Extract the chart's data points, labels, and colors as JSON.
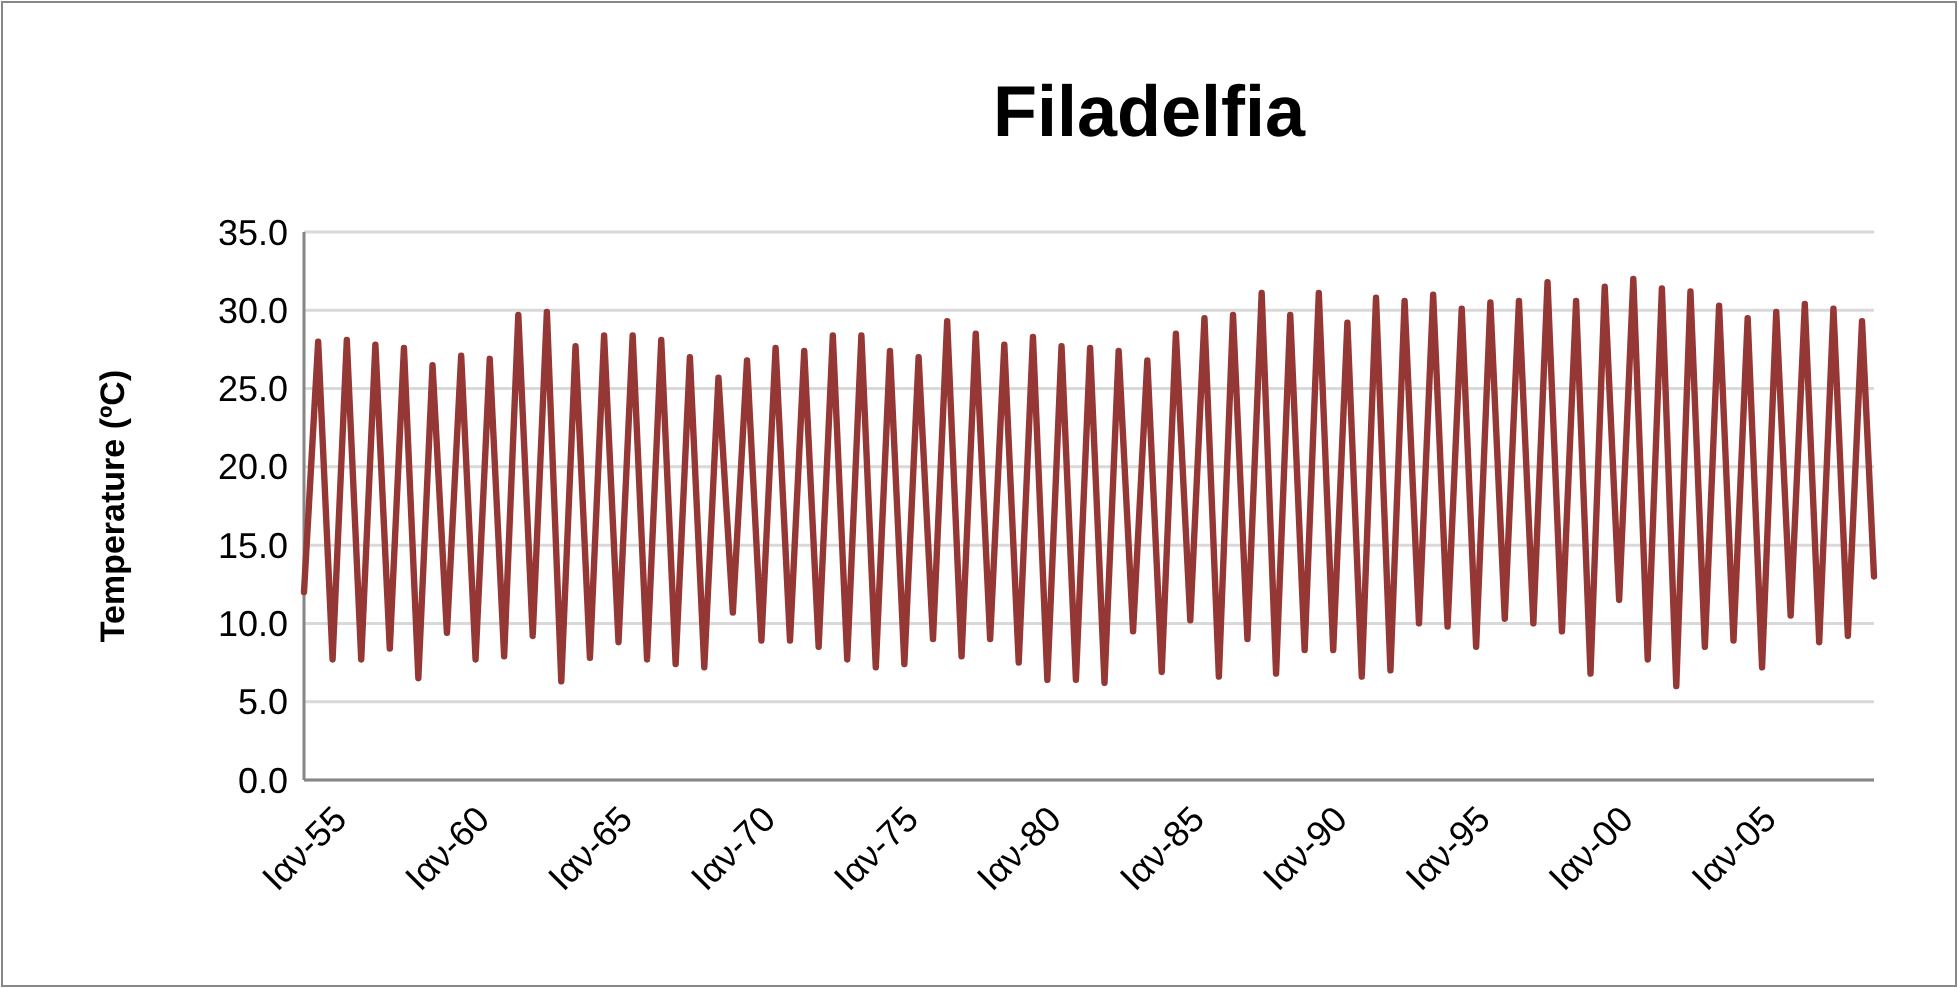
{
  "chart_data": {
    "type": "line",
    "title": "Filadelfia",
    "ylabel": "Temperature (ºC)",
    "x": [
      "1955-01",
      "1955-07",
      "1956-01",
      "1956-07",
      "1957-01",
      "1957-07",
      "1958-01",
      "1958-07",
      "1959-01",
      "1959-07",
      "1960-01",
      "1960-07",
      "1961-01",
      "1961-07",
      "1962-01",
      "1962-07",
      "1963-01",
      "1963-07",
      "1964-01",
      "1964-07",
      "1965-01",
      "1965-07",
      "1966-01",
      "1966-07",
      "1967-01",
      "1967-07",
      "1968-01",
      "1968-07",
      "1969-01",
      "1969-07",
      "1970-01",
      "1970-07",
      "1971-01",
      "1971-07",
      "1972-01",
      "1972-07",
      "1973-01",
      "1973-07",
      "1974-01",
      "1974-07",
      "1975-01",
      "1975-07",
      "1976-01",
      "1976-07",
      "1977-01",
      "1977-07",
      "1978-01",
      "1978-07",
      "1979-01",
      "1979-07",
      "1980-01",
      "1980-07",
      "1981-01",
      "1981-07",
      "1982-01",
      "1982-07",
      "1983-01",
      "1983-07",
      "1984-01",
      "1984-07",
      "1985-01",
      "1985-07",
      "1986-01",
      "1986-07",
      "1987-01",
      "1987-07",
      "1988-01",
      "1988-07",
      "1989-01",
      "1989-07",
      "1990-01",
      "1990-07",
      "1991-01",
      "1991-07",
      "1992-01",
      "1992-07",
      "1993-01",
      "1993-07",
      "1994-01",
      "1994-07",
      "1995-01",
      "1995-07",
      "1996-01",
      "1996-07",
      "1997-01",
      "1997-07",
      "1998-01",
      "1998-07",
      "1999-01",
      "1999-07",
      "2000-01",
      "2000-07",
      "2001-01",
      "2001-07",
      "2002-01",
      "2002-07",
      "2003-01",
      "2003-07",
      "2004-01",
      "2004-07",
      "2005-01",
      "2005-07",
      "2006-01",
      "2006-07",
      "2007-01",
      "2007-07",
      "2008-01",
      "2008-07",
      "2009-01",
      "2009-07",
      "2009-12"
    ],
    "series": [
      {
        "color": "#953735",
        "values": [
          12.0,
          28.0,
          7.7,
          28.1,
          7.7,
          27.8,
          8.4,
          27.6,
          6.5,
          26.5,
          9.4,
          27.1,
          7.7,
          26.9,
          7.9,
          29.7,
          9.2,
          29.9,
          6.3,
          27.7,
          7.8,
          28.4,
          8.8,
          28.4,
          7.7,
          28.1,
          7.4,
          27.0,
          7.2,
          25.7,
          10.7,
          26.8,
          8.9,
          27.6,
          8.9,
          27.4,
          8.5,
          28.4,
          7.7,
          28.4,
          7.2,
          27.4,
          7.4,
          27.0,
          9.0,
          29.3,
          7.9,
          28.5,
          9.0,
          27.8,
          7.5,
          28.3,
          6.4,
          27.7,
          6.4,
          27.6,
          6.2,
          27.4,
          9.5,
          26.8,
          6.9,
          28.5,
          10.2,
          29.5,
          6.6,
          29.7,
          9.0,
          31.1,
          6.8,
          29.7,
          8.3,
          31.1,
          8.3,
          29.2,
          6.6,
          30.8,
          7.0,
          30.6,
          10.0,
          31.0,
          9.8,
          30.1,
          8.5,
          30.5,
          10.3,
          30.6,
          10.0,
          31.8,
          9.5,
          30.6,
          6.8,
          31.5,
          11.5,
          32.0,
          7.7,
          31.4,
          6.0,
          31.2,
          8.5,
          30.3,
          8.9,
          29.5,
          7.2,
          29.9,
          10.5,
          30.4,
          8.8,
          30.1,
          9.2,
          29.3,
          13.0
        ]
      }
    ],
    "xlim": [
      "1955-01",
      "2009-12"
    ],
    "xticks": [
      {
        "value": "1955-01",
        "label": "Ιαν-55"
      },
      {
        "value": "1960-01",
        "label": "Ιαν-60"
      },
      {
        "value": "1965-01",
        "label": "Ιαν-65"
      },
      {
        "value": "1970-01",
        "label": "Ιαν-70"
      },
      {
        "value": "1975-01",
        "label": "Ιαν-75"
      },
      {
        "value": "1980-01",
        "label": "Ιαν-80"
      },
      {
        "value": "1985-01",
        "label": "Ιαν-85"
      },
      {
        "value": "1990-01",
        "label": "Ιαν-90"
      },
      {
        "value": "1995-01",
        "label": "Ιαν-95"
      },
      {
        "value": "2000-01",
        "label": "Ιαν-00"
      },
      {
        "value": "2005-01",
        "label": "Ιαν-05"
      }
    ],
    "ylim": [
      0,
      35
    ],
    "yticks": [
      {
        "value": 0,
        "label": "0.0"
      },
      {
        "value": 5,
        "label": "5.0"
      },
      {
        "value": 10,
        "label": "10.0"
      },
      {
        "value": 15,
        "label": "15.0"
      },
      {
        "value": 20,
        "label": "20.0"
      },
      {
        "value": 25,
        "label": "25.0"
      },
      {
        "value": 30,
        "label": "30.0"
      },
      {
        "value": 35,
        "label": "35.0"
      }
    ],
    "grid": "y"
  }
}
